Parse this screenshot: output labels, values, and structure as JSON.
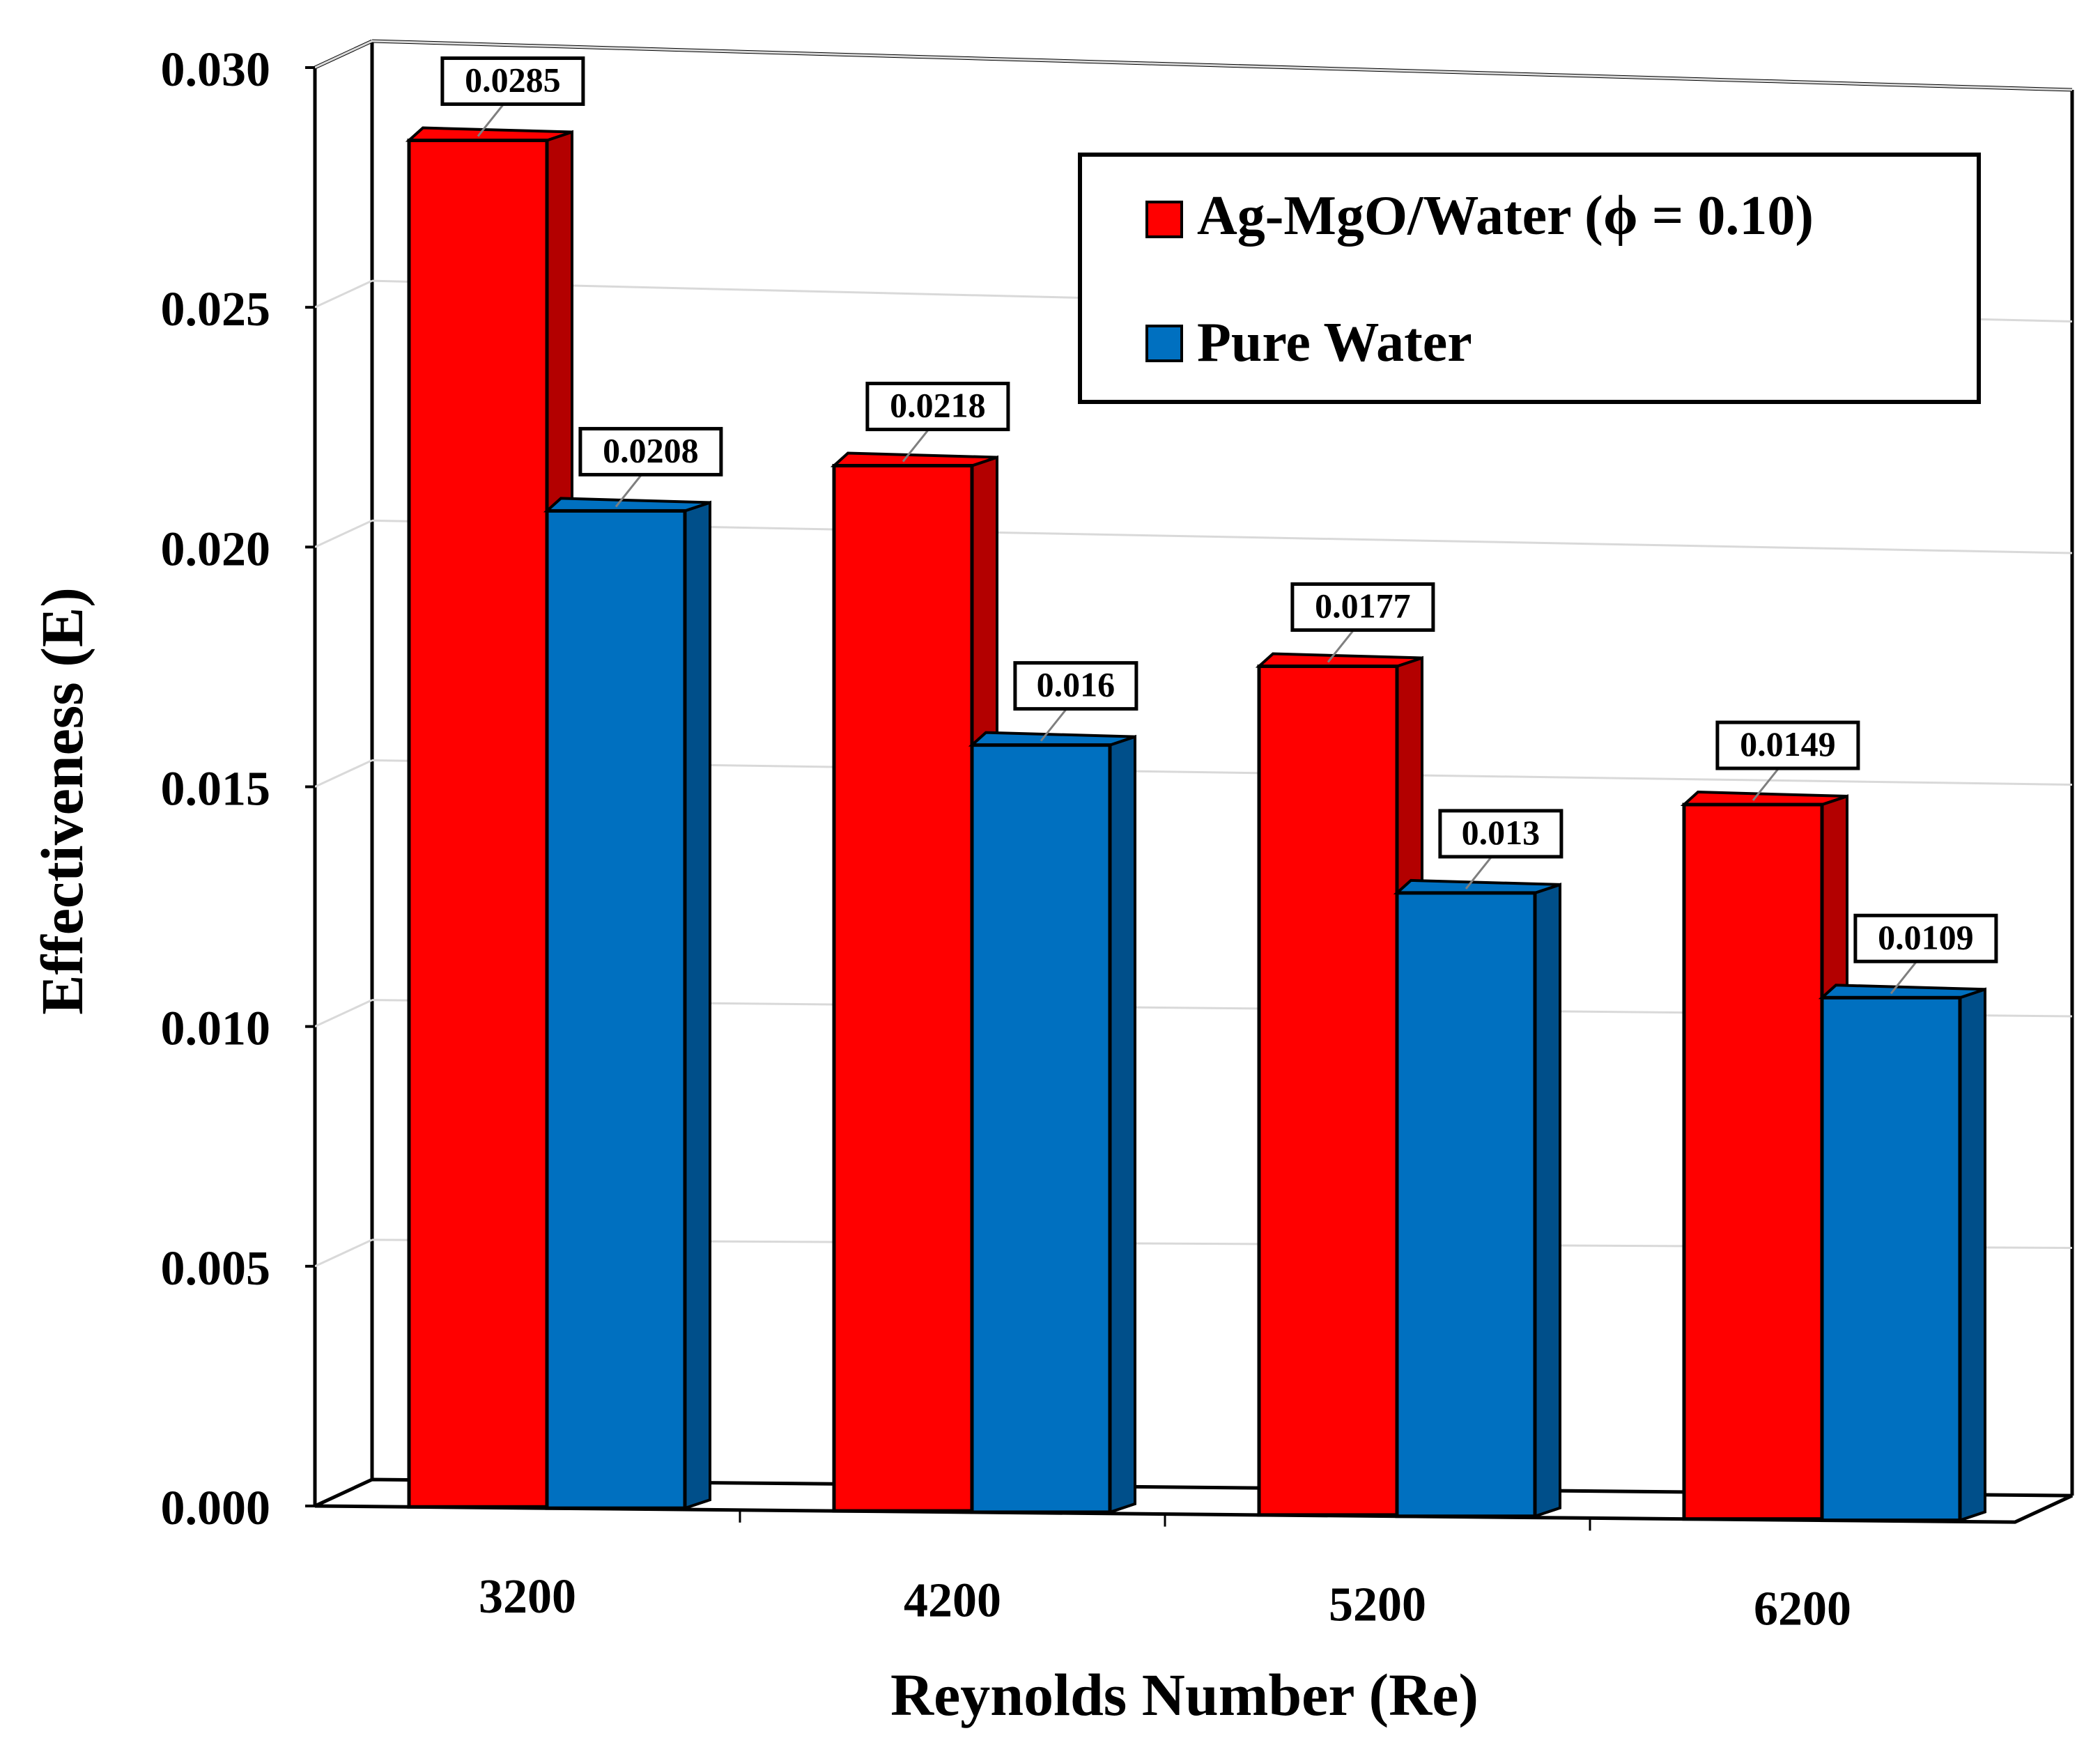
{
  "chart_data": {
    "type": "bar",
    "style": "3d-clustered-column",
    "xlabel": "Reynolds Number (Re)",
    "ylabel": "Effectiveness (E)",
    "categories": [
      "3200",
      "4200",
      "5200",
      "6200"
    ],
    "ylim": [
      0,
      0.03
    ],
    "yticks": [
      "0.000",
      "0.005",
      "0.010",
      "0.015",
      "0.020",
      "0.025",
      "0.030"
    ],
    "grid": true,
    "legend_position": "top-right",
    "series": [
      {
        "name": "Ag-MgO/Water (ϕ = 0.10)",
        "values": [
          0.0285,
          0.0218,
          0.0177,
          0.0149
        ],
        "labels": [
          "0.0285",
          "0.0218",
          "0.0177",
          "0.0149"
        ],
        "color": "#ff0000",
        "side_color": "#b30000"
      },
      {
        "name": "Pure Water",
        "values": [
          0.0208,
          0.016,
          0.013,
          0.0109
        ],
        "labels": [
          "0.0208",
          "0.016",
          "0.013",
          "0.0109"
        ],
        "color": "#0070c0",
        "side_color": "#004f8a"
      }
    ]
  }
}
